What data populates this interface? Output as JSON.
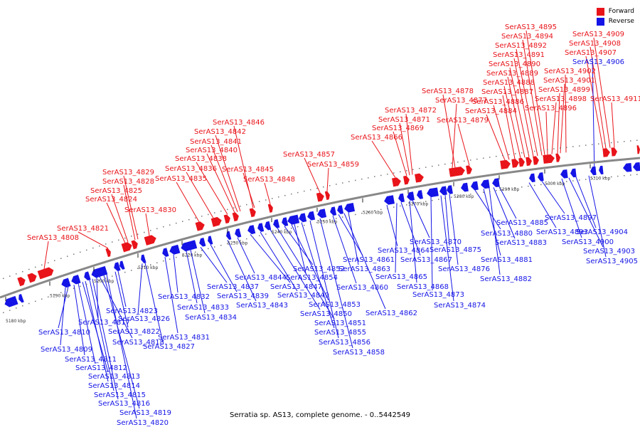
{
  "legend": [
    {
      "label": "Forward",
      "color": "#e8141a"
    },
    {
      "label": "Reverse",
      "color": "#1414e6"
    }
  ],
  "caption": "Serratia sp. AS13, complete genome. - 0..5442549",
  "ticks": [
    "5180 kbp",
    "5190 kbp",
    "5200 kbp",
    "5210 kbp",
    "5220 kbp",
    "5230 kbp",
    "5240 kbp",
    "5250 kbp",
    "5260 kbp",
    "5270 kbp",
    "5280 kbp",
    "5290 kbp",
    "5300 kbp",
    "5310 kbp"
  ],
  "forward_labels": [
    "SerAS13_4808",
    "SerAS13_4821",
    "SerAS13_4824",
    "SerAS13_4825",
    "SerAS13_4828",
    "SerAS13_4829",
    "SerAS13_4830",
    "SerAS13_4835",
    "SerAS13_4836",
    "SerAS13_4838",
    "SerAS13_4840",
    "SerAS13_4841",
    "SerAS13_4842",
    "SerAS13_4846",
    "SerAS13_4845",
    "SerAS13_4848",
    "SerAS13_4857",
    "SerAS13_4859",
    "SerAS13_4866",
    "SerAS13_4869",
    "SerAS13_4871",
    "SerAS13_4872",
    "SerAS13_4877",
    "SerAS13_4878",
    "SerAS13_4879",
    "SerAS13_4884",
    "SerAS13_4886",
    "SerAS13_4887",
    "SerAS13_4888",
    "SerAS13_4889",
    "SerAS13_4890",
    "SerAS13_4891",
    "SerAS13_4892",
    "SerAS13_4894",
    "SerAS13_4895",
    "SerAS13_4896",
    "SerAS13_4898",
    "SerAS13_4899",
    "SerAS13_4901",
    "SerAS13_4902",
    "SerAS13_4907",
    "SerAS13_4908",
    "SerAS13_4909",
    "SerAS13_4911"
  ],
  "reverse_labels": [
    "SerAS13_4809",
    "SerAS13_4810",
    "SerAS13_4811",
    "SerAS13_4812",
    "SerAS13_4813",
    "SerAS13_4814",
    "SerAS13_4815",
    "SerAS13_4816",
    "SerAS13_4817",
    "SerAS13_4818",
    "SerAS13_4819",
    "SerAS13_4820",
    "SerAS13_4822",
    "SerAS13_4823",
    "SerAS13_4826",
    "SerAS13_4827",
    "SerAS13_4831",
    "SerAS13_4832",
    "SerAS13_4833",
    "SerAS13_4834",
    "SerAS13_4837",
    "SerAS13_4839",
    "SerAS13_4843",
    "SerAS13_4844",
    "SerAS13_4847",
    "SerAS13_4849",
    "SerAS13_4850",
    "SerAS13_4851",
    "SerAS13_4852",
    "SerAS13_4853",
    "SerAS13_4854",
    "SerAS13_4855",
    "SerAS13_4856",
    "SerAS13_4858",
    "SerAS13_4860",
    "SerAS13_4861",
    "SerAS13_4862",
    "SerAS13_4863",
    "SerAS13_4864",
    "SerAS13_4865",
    "SerAS13_4867",
    "SerAS13_4868",
    "SerAS13_4870",
    "SerAS13_4873",
    "SerAS13_4874",
    "SerAS13_4875",
    "SerAS13_4876",
    "SerAS13_4880",
    "SerAS13_4881",
    "SerAS13_4882",
    "SerAS13_4883",
    "SerAS13_4885",
    "SerAS13_4893",
    "SerAS13_4897",
    "SerAS13_4900",
    "SerAS13_4903",
    "SerAS13_4904",
    "SerAS13_4905",
    "SerAS13_4906"
  ]
}
